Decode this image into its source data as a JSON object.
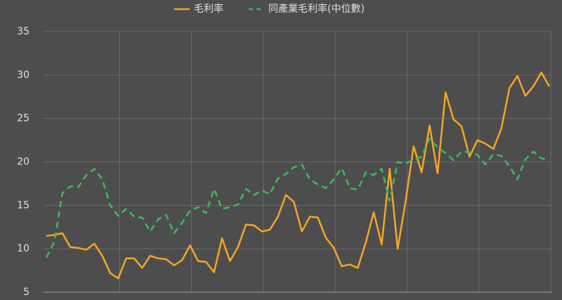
{
  "chart_data": {
    "type": "line",
    "categories": [
      null,
      null,
      null,
      null,
      null,
      null,
      null,
      null,
      null,
      null,
      null,
      null,
      null,
      null,
      null,
      null,
      null,
      null,
      null,
      null,
      null,
      null,
      null,
      null,
      null,
      null,
      null,
      null,
      null,
      null,
      null,
      null,
      null,
      null,
      null,
      null,
      null,
      null,
      null,
      null,
      null,
      null,
      null,
      null,
      null,
      null,
      null,
      null,
      null,
      null,
      null,
      null,
      null,
      null,
      null,
      null,
      null,
      null,
      null,
      null,
      null,
      null,
      null,
      null
    ],
    "series": [
      {
        "name": "毛利率",
        "color": "#f5a623",
        "dashed": false,
        "values": [
          11.5,
          11.6,
          11.8,
          10.2,
          10.1,
          9.9,
          10.6,
          9.2,
          7.2,
          6.6,
          8.9,
          8.9,
          7.8,
          9.2,
          8.9,
          8.8,
          8.1,
          8.7,
          10.4,
          8.6,
          8.5,
          7.3,
          11.2,
          8.6,
          10.2,
          12.8,
          12.7,
          12.0,
          12.2,
          13.7,
          16.2,
          15.4,
          12.0,
          13.7,
          13.6,
          11.3,
          10.1,
          8.0,
          8.2,
          7.8,
          10.7,
          14.2,
          10.5,
          19.2,
          10.0,
          15.5,
          21.8,
          18.8,
          24.2,
          18.7,
          28.0,
          24.9,
          24.1,
          20.6,
          22.5,
          22.1,
          21.5,
          23.9,
          28.5,
          29.9,
          27.6,
          28.7,
          30.3,
          28.7
        ]
      },
      {
        "name": "同產業毛利率(中位數)",
        "color": "#3dbb5e",
        "dashed": true,
        "values": [
          9.0,
          10.8,
          16.4,
          17.2,
          17.1,
          18.5,
          19.2,
          18.0,
          15.0,
          13.8,
          14.6,
          13.7,
          13.6,
          12.0,
          13.4,
          13.9,
          11.8,
          13.0,
          14.4,
          14.8,
          14.1,
          16.9,
          14.6,
          14.8,
          15.1,
          16.9,
          16.2,
          16.7,
          16.3,
          18.1,
          18.6,
          19.4,
          19.7,
          18.0,
          17.4,
          17.0,
          18.0,
          19.3,
          17.0,
          16.8,
          18.8,
          18.5,
          19.2,
          15.5,
          20.0,
          19.8,
          20.3,
          20.6,
          22.7,
          21.7,
          21.0,
          20.2,
          21.2,
          21.1,
          20.8,
          19.7,
          20.9,
          20.7,
          19.5,
          18.0,
          20.3,
          21.2,
          20.4,
          20.3
        ]
      }
    ],
    "ylim": [
      5,
      35
    ],
    "yticks": [
      5,
      10,
      15,
      20,
      25,
      30,
      35
    ],
    "grid": true,
    "legend": "top"
  }
}
